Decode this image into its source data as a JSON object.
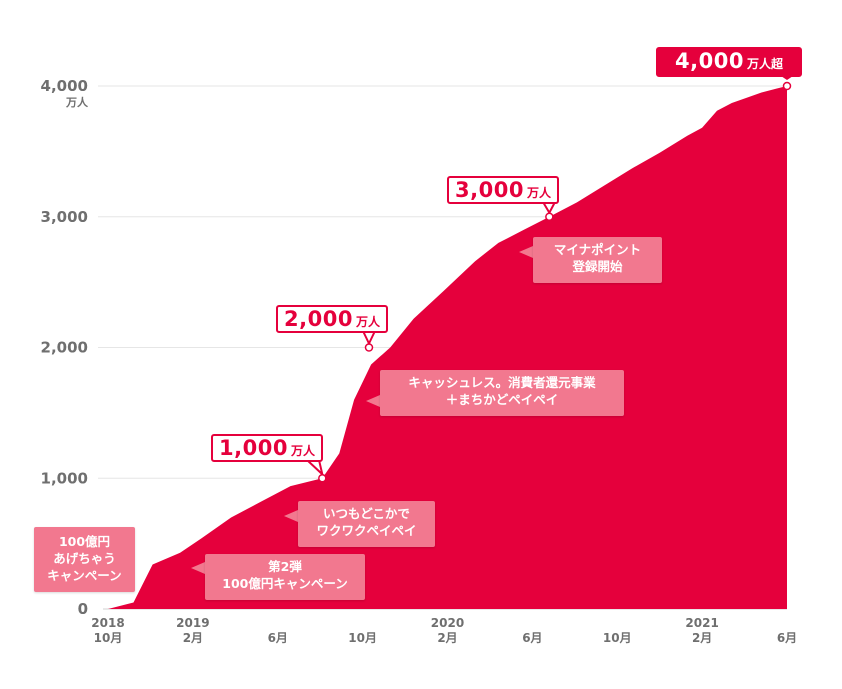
{
  "colors": {
    "area": "#e5003c",
    "event_box": "#f2788f",
    "grid": "#e6e6e6",
    "axis_text": "#6f6f6f"
  },
  "chart_data": {
    "type": "area",
    "yticks": [
      {
        "label": "0",
        "value": 0
      },
      {
        "label": "1,000",
        "value": 1000
      },
      {
        "label": "2,000",
        "value": 2000
      },
      {
        "label": "3,000",
        "value": 3000
      },
      {
        "label": "4,000",
        "value": 4000,
        "unit": "万人"
      }
    ],
    "ylim": [
      0,
      4000
    ],
    "xlim": [
      0,
      32
    ],
    "xticks": [
      {
        "x": 0,
        "year": "2018",
        "month": "10月"
      },
      {
        "x": 4,
        "year": "2019",
        "month": "2月"
      },
      {
        "x": 8,
        "year": "",
        "month": "6月"
      },
      {
        "x": 12,
        "year": "",
        "month": "10月"
      },
      {
        "x": 16,
        "year": "2020",
        "month": "2月"
      },
      {
        "x": 20,
        "year": "",
        "month": "6月"
      },
      {
        "x": 24,
        "year": "",
        "month": "10月"
      },
      {
        "x": 28,
        "year": "2021",
        "month": "2月"
      },
      {
        "x": 32,
        "year": "",
        "month": "6月"
      }
    ],
    "series": [
      {
        "x": [
          0,
          1.2,
          2.1,
          3.4,
          4.4,
          5.8,
          7.2,
          8.6,
          10.1,
          10.9,
          11.6,
          12.4,
          13.3,
          14.4,
          15.8,
          17.3,
          18.4,
          19.6,
          20.8,
          22.1,
          23.4,
          24.7,
          26.0,
          27.3,
          28.0,
          28.7,
          29.4,
          30.1,
          30.8,
          31.5,
          32.0
        ],
        "y": [
          0,
          50,
          340,
          430,
          540,
          700,
          820,
          940,
          1000,
          1190,
          1600,
          1870,
          2000,
          2220,
          2430,
          2660,
          2800,
          2900,
          3000,
          3110,
          3240,
          3370,
          3490,
          3620,
          3680,
          3810,
          3870,
          3910,
          3950,
          3980,
          4000
        ]
      }
    ],
    "milestones": [
      {
        "x": 10.1,
        "y": 1000,
        "number": "1,000",
        "unit": "万人"
      },
      {
        "x": 12.3,
        "y": 2000,
        "number": "2,000",
        "unit": "万人"
      },
      {
        "x": 20.8,
        "y": 3000,
        "number": "3,000",
        "unit": "万人"
      },
      {
        "x": 32.0,
        "y": 4000,
        "number": "4,000",
        "unit": "万人超"
      }
    ],
    "events": [
      "100億円\nあげちゃう\nキャンペーン",
      "第2弾\n100億円キャンペーン",
      "いつもどこかで\nワクワクペイペイ",
      "キャッシュレス。消費者還元事業\n＋まちかどペイペイ",
      "マイナポイント\n登録開始"
    ]
  }
}
